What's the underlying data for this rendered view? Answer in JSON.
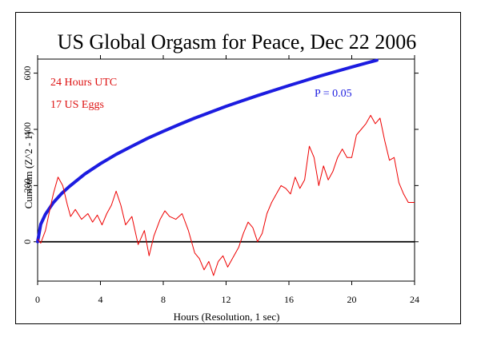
{
  "chart_data": {
    "type": "line",
    "title": "US Global Orgasm for Peace, Dec 22 2006",
    "xlabel": "Hours (Resolution, 1 sec)",
    "ylabel": "Cumsum (Z^2 - 1)",
    "xlim": [
      0,
      24
    ],
    "ylim": [
      -140,
      650
    ],
    "xticks": [
      0,
      4,
      8,
      12,
      16,
      20,
      24
    ],
    "yticks": [
      0,
      200,
      400,
      600
    ],
    "baseline": 0,
    "annotations": {
      "period": "24 Hours UTC",
      "eggs": "17 US Eggs",
      "p_label": "P = 0.05"
    },
    "colors": {
      "cumsum": "#ee0000",
      "envelope": "#1c1ce0",
      "annotation_red": "#dd1111",
      "annotation_blue": "#1c1ce0",
      "baseline": "#000000"
    },
    "series": [
      {
        "role": "cumulative deviation",
        "color": "#ee0000",
        "x": [
          0,
          0.2,
          0.5,
          0.8,
          1.0,
          1.3,
          1.6,
          1.9,
          2.1,
          2.4,
          2.8,
          3.2,
          3.5,
          3.8,
          4.1,
          4.4,
          4.7,
          5.0,
          5.3,
          5.6,
          6.0,
          6.4,
          6.8,
          7.1,
          7.4,
          7.8,
          8.1,
          8.4,
          8.8,
          9.2,
          9.6,
          10.0,
          10.3,
          10.6,
          10.9,
          11.2,
          11.5,
          11.8,
          12.1,
          12.4,
          12.8,
          13.1,
          13.4,
          13.7,
          14.0,
          14.3,
          14.6,
          14.9,
          15.2,
          15.5,
          15.8,
          16.1,
          16.4,
          16.7,
          17.0,
          17.3,
          17.6,
          17.9,
          18.2,
          18.5,
          18.8,
          19.1,
          19.4,
          19.7,
          20.0,
          20.3,
          20.6,
          20.9,
          21.2,
          21.5,
          21.8,
          22.1,
          22.4,
          22.7,
          23.0,
          23.3,
          23.6,
          24.0
        ],
        "y": [
          10,
          -5,
          40,
          120,
          170,
          230,
          200,
          130,
          90,
          115,
          80,
          100,
          70,
          95,
          60,
          100,
          130,
          180,
          130,
          60,
          90,
          -10,
          40,
          -50,
          20,
          80,
          110,
          90,
          80,
          100,
          40,
          -40,
          -60,
          -100,
          -70,
          -120,
          -70,
          -50,
          -90,
          -60,
          -20,
          30,
          70,
          50,
          0,
          30,
          100,
          140,
          170,
          200,
          190,
          170,
          230,
          190,
          220,
          340,
          300,
          200,
          270,
          220,
          250,
          300,
          330,
          300,
          300,
          380,
          400,
          420,
          450,
          420,
          440,
          360,
          290,
          300,
          210,
          170,
          140,
          140
        ]
      },
      {
        "role": "significance envelope",
        "name": "P = 0.05",
        "color": "#1c1ce0",
        "x": [
          0,
          0.2,
          0.5,
          1,
          1.5,
          2,
          3,
          4,
          5,
          6,
          7,
          8,
          9,
          10,
          11,
          12,
          13,
          14,
          15,
          16,
          17,
          18,
          19,
          20,
          21,
          21.6
        ],
        "y": [
          0,
          62,
          98,
          139,
          170,
          196,
          241,
          278,
          311,
          340,
          368,
          393,
          417,
          440,
          461,
          482,
          501,
          520,
          538,
          556,
          573,
          590,
          606,
          622,
          637,
          646
        ]
      }
    ]
  }
}
